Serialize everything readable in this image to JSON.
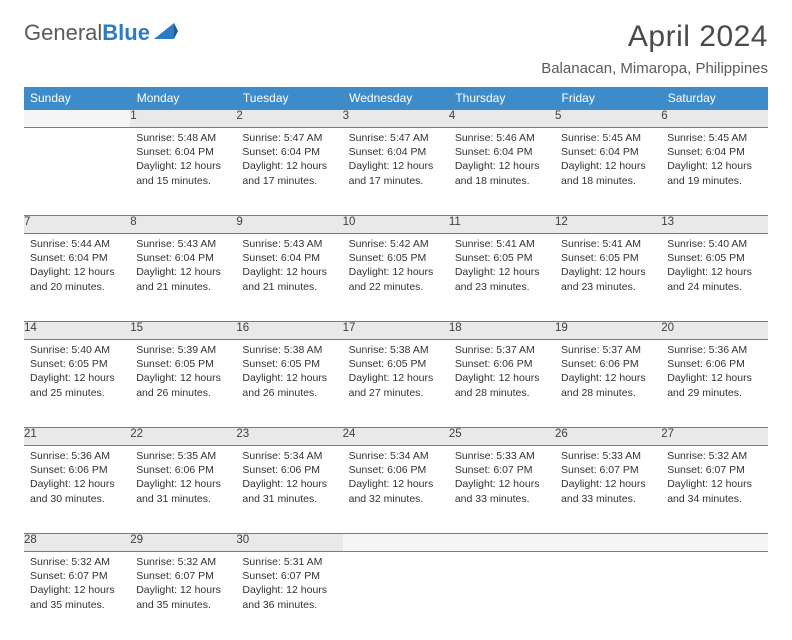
{
  "brand": {
    "name1": "General",
    "name2": "Blue"
  },
  "title": "April 2024",
  "location": "Balanacan, Mimaropa, Philippines",
  "theme": {
    "header_bg": "#3d8bc9",
    "header_fg": "#ffffff",
    "daynum_bg": "#e9e9e9",
    "border": "#3d8bc9",
    "text": "#333333",
    "logo_gray": "#5a5a5a",
    "logo_blue": "#2d7bc4"
  },
  "day_headers": [
    "Sunday",
    "Monday",
    "Tuesday",
    "Wednesday",
    "Thursday",
    "Friday",
    "Saturday"
  ],
  "weeks": [
    [
      null,
      {
        "n": "1",
        "sr": "5:48 AM",
        "ss": "6:04 PM",
        "dl": "12 hours and 15 minutes."
      },
      {
        "n": "2",
        "sr": "5:47 AM",
        "ss": "6:04 PM",
        "dl": "12 hours and 17 minutes."
      },
      {
        "n": "3",
        "sr": "5:47 AM",
        "ss": "6:04 PM",
        "dl": "12 hours and 17 minutes."
      },
      {
        "n": "4",
        "sr": "5:46 AM",
        "ss": "6:04 PM",
        "dl": "12 hours and 18 minutes."
      },
      {
        "n": "5",
        "sr": "5:45 AM",
        "ss": "6:04 PM",
        "dl": "12 hours and 18 minutes."
      },
      {
        "n": "6",
        "sr": "5:45 AM",
        "ss": "6:04 PM",
        "dl": "12 hours and 19 minutes."
      }
    ],
    [
      {
        "n": "7",
        "sr": "5:44 AM",
        "ss": "6:04 PM",
        "dl": "12 hours and 20 minutes."
      },
      {
        "n": "8",
        "sr": "5:43 AM",
        "ss": "6:04 PM",
        "dl": "12 hours and 21 minutes."
      },
      {
        "n": "9",
        "sr": "5:43 AM",
        "ss": "6:04 PM",
        "dl": "12 hours and 21 minutes."
      },
      {
        "n": "10",
        "sr": "5:42 AM",
        "ss": "6:05 PM",
        "dl": "12 hours and 22 minutes."
      },
      {
        "n": "11",
        "sr": "5:41 AM",
        "ss": "6:05 PM",
        "dl": "12 hours and 23 minutes."
      },
      {
        "n": "12",
        "sr": "5:41 AM",
        "ss": "6:05 PM",
        "dl": "12 hours and 23 minutes."
      },
      {
        "n": "13",
        "sr": "5:40 AM",
        "ss": "6:05 PM",
        "dl": "12 hours and 24 minutes."
      }
    ],
    [
      {
        "n": "14",
        "sr": "5:40 AM",
        "ss": "6:05 PM",
        "dl": "12 hours and 25 minutes."
      },
      {
        "n": "15",
        "sr": "5:39 AM",
        "ss": "6:05 PM",
        "dl": "12 hours and 26 minutes."
      },
      {
        "n": "16",
        "sr": "5:38 AM",
        "ss": "6:05 PM",
        "dl": "12 hours and 26 minutes."
      },
      {
        "n": "17",
        "sr": "5:38 AM",
        "ss": "6:05 PM",
        "dl": "12 hours and 27 minutes."
      },
      {
        "n": "18",
        "sr": "5:37 AM",
        "ss": "6:06 PM",
        "dl": "12 hours and 28 minutes."
      },
      {
        "n": "19",
        "sr": "5:37 AM",
        "ss": "6:06 PM",
        "dl": "12 hours and 28 minutes."
      },
      {
        "n": "20",
        "sr": "5:36 AM",
        "ss": "6:06 PM",
        "dl": "12 hours and 29 minutes."
      }
    ],
    [
      {
        "n": "21",
        "sr": "5:36 AM",
        "ss": "6:06 PM",
        "dl": "12 hours and 30 minutes."
      },
      {
        "n": "22",
        "sr": "5:35 AM",
        "ss": "6:06 PM",
        "dl": "12 hours and 31 minutes."
      },
      {
        "n": "23",
        "sr": "5:34 AM",
        "ss": "6:06 PM",
        "dl": "12 hours and 31 minutes."
      },
      {
        "n": "24",
        "sr": "5:34 AM",
        "ss": "6:06 PM",
        "dl": "12 hours and 32 minutes."
      },
      {
        "n": "25",
        "sr": "5:33 AM",
        "ss": "6:07 PM",
        "dl": "12 hours and 33 minutes."
      },
      {
        "n": "26",
        "sr": "5:33 AM",
        "ss": "6:07 PM",
        "dl": "12 hours and 33 minutes."
      },
      {
        "n": "27",
        "sr": "5:32 AM",
        "ss": "6:07 PM",
        "dl": "12 hours and 34 minutes."
      }
    ],
    [
      {
        "n": "28",
        "sr": "5:32 AM",
        "ss": "6:07 PM",
        "dl": "12 hours and 35 minutes."
      },
      {
        "n": "29",
        "sr": "5:32 AM",
        "ss": "6:07 PM",
        "dl": "12 hours and 35 minutes."
      },
      {
        "n": "30",
        "sr": "5:31 AM",
        "ss": "6:07 PM",
        "dl": "12 hours and 36 minutes."
      },
      null,
      null,
      null,
      null
    ]
  ],
  "labels": {
    "sunrise": "Sunrise:",
    "sunset": "Sunset:",
    "daylight": "Daylight:"
  }
}
